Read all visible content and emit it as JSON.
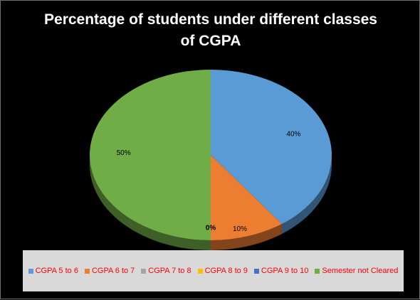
{
  "chart_data": {
    "type": "pie",
    "title_lines": [
      "Percentage of students under different classes",
      "of CGPA"
    ],
    "legend_position": "bottom",
    "legend_text_color": "#ff0000",
    "slices": [
      {
        "name": "CGPA 5 to 6",
        "value": 40,
        "label": "40%",
        "color": "#5b9bd5"
      },
      {
        "name": "CGPA 6 to 7",
        "value": 10,
        "label": "10%",
        "color": "#ed7d31"
      },
      {
        "name": "CGPA 7 to 8",
        "value": 0,
        "label": "",
        "color": "#a5a5a5"
      },
      {
        "name": "CGPA 8 to 9",
        "value": 0,
        "label": "",
        "color": "#ffc000"
      },
      {
        "name": "CGPA 9 to 10",
        "value": 0,
        "label": "",
        "color": "#4472c4"
      },
      {
        "name": "Semester not Cleared",
        "value": 50,
        "label": "50%",
        "color": "#70ad47"
      }
    ],
    "zero_label": "0%"
  }
}
